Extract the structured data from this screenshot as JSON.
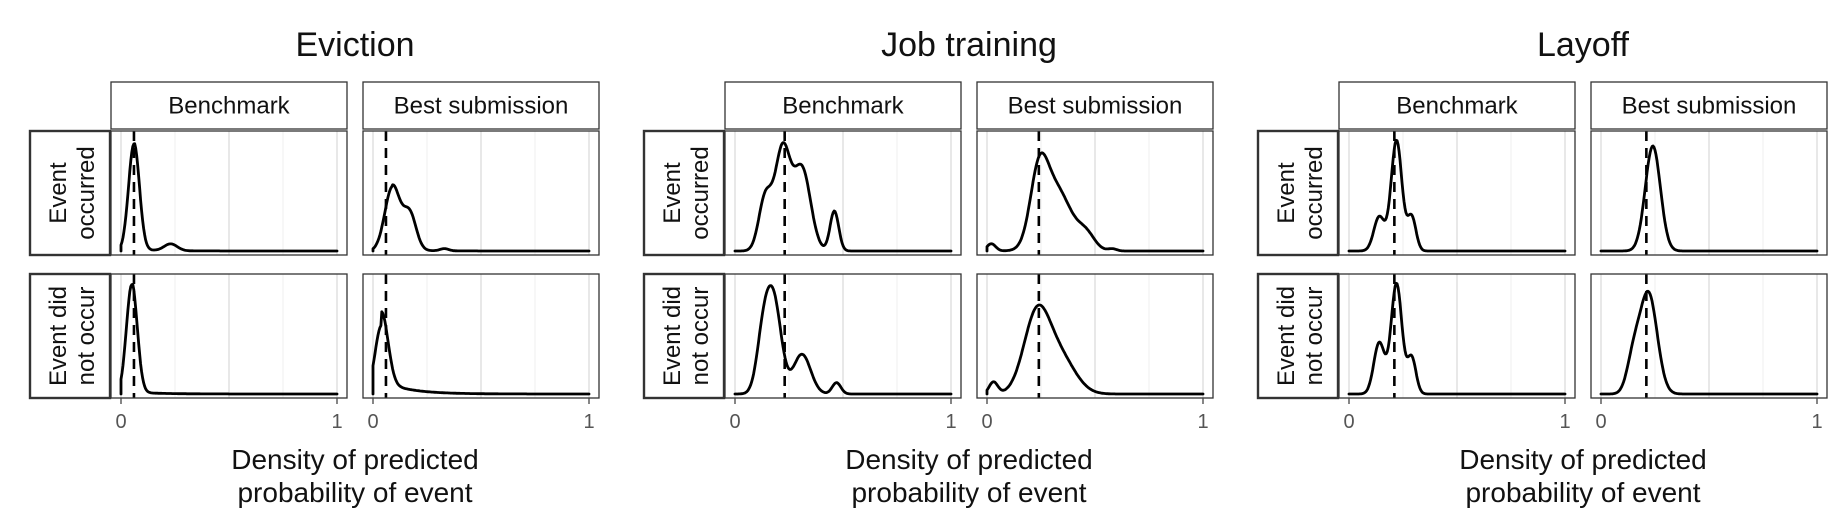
{
  "colors": {
    "line": "#000000",
    "grid": "#d9d9d9",
    "border": "#333333",
    "tick_label": "#555555"
  },
  "chart_data": [
    {
      "type": "area",
      "title": "Eviction",
      "xlabel": "Density of predicted probability of event",
      "xlabel_lines": [
        "Density of predicted",
        "probability of event"
      ],
      "xlim": [
        0,
        1
      ],
      "x_ticks": [
        0,
        1
      ],
      "x_tick_labels": [
        "0",
        "1"
      ],
      "grid": true,
      "column_facets": [
        "Benchmark",
        "Best submission"
      ],
      "row_facets": [
        "Event occurred",
        "Event did not occur"
      ],
      "row_facet_lines": [
        [
          "Event",
          "occurred"
        ],
        [
          "Event did",
          "not occur"
        ]
      ],
      "reference_line": [
        0.06,
        0.06
      ],
      "panels": [
        [
          {
            "mode": 0.06,
            "modeSd": 0.025,
            "peak": 0.94,
            "bumps": [
              [
                0.23,
                0.03,
                0.06
              ]
            ],
            "tail": 0.012
          },
          {
            "mode": 0.09,
            "modeSd": 0.035,
            "peak": 0.58,
            "bumps": [
              [
                0.17,
                0.03,
                0.33
              ],
              [
                0.33,
                0.02,
                0.02
              ]
            ],
            "tail": 0.012
          }
        ],
        [
          {
            "mode": 0.05,
            "modeSd": 0.025,
            "peak": 0.96,
            "bumps": [],
            "tail": 0.018
          },
          {
            "mode": 0.04,
            "modeSd": 0.03,
            "peak": 0.72,
            "bumps": [],
            "tail": 0.14
          }
        ]
      ]
    },
    {
      "type": "area",
      "title": "Job training",
      "xlabel": "Density of predicted probability of event",
      "xlabel_lines": [
        "Density of predicted",
        "probability of event"
      ],
      "xlim": [
        0,
        1
      ],
      "x_ticks": [
        0,
        1
      ],
      "x_tick_labels": [
        "0",
        "1"
      ],
      "grid": true,
      "column_facets": [
        "Benchmark",
        "Best submission"
      ],
      "row_facets": [
        "Event occurred",
        "Event did not occur"
      ],
      "row_facet_lines": [
        [
          "Event",
          "occurred"
        ],
        [
          "Event did",
          "not occur"
        ]
      ],
      "reference_line": [
        0.23,
        0.24
      ],
      "panels": [
        [
          {
            "mode": 0.22,
            "modeSd": 0.035,
            "peak": 0.95,
            "bumps": [
              [
                0.14,
                0.03,
                0.5
              ],
              [
                0.31,
                0.04,
                0.78
              ],
              [
                0.46,
                0.02,
                0.38
              ]
            ],
            "tail": 0
          },
          {
            "mode": 0.24,
            "modeSd": 0.04,
            "peak": 0.86,
            "bumps": [
              [
                0.32,
                0.07,
                0.85
              ],
              [
                0.46,
                0.04,
                0.2
              ],
              [
                0.02,
                0.02,
                0.1
              ],
              [
                0.58,
                0.02,
                0.03
              ]
            ],
            "tail": 0
          }
        ],
        [
          {
            "mode": 0.18,
            "modeSd": 0.035,
            "peak": 0.95,
            "bumps": [
              [
                0.13,
                0.03,
                0.55
              ],
              [
                0.31,
                0.04,
                0.42
              ],
              [
                0.47,
                0.02,
                0.12
              ]
            ],
            "tail": 0
          },
          {
            "mode": 0.23,
            "modeSd": 0.06,
            "peak": 0.78,
            "bumps": [
              [
                0.34,
                0.07,
                0.35
              ],
              [
                0.03,
                0.02,
                0.12
              ]
            ],
            "tail": 0
          }
        ]
      ]
    },
    {
      "type": "area",
      "title": "Layoff",
      "xlabel": "Density of predicted probability of event",
      "xlabel_lines": [
        "Density of predicted",
        "probability of event"
      ],
      "xlim": [
        0,
        1
      ],
      "x_ticks": [
        0,
        1
      ],
      "x_tick_labels": [
        "0",
        "1"
      ],
      "grid": true,
      "column_facets": [
        "Benchmark",
        "Best submission"
      ],
      "row_facets": [
        "Event occurred",
        "Event did not occur"
      ],
      "row_facet_lines": [
        [
          "Event",
          "occurred"
        ],
        [
          "Event did",
          "not occur"
        ]
      ],
      "reference_line": [
        0.21,
        0.21
      ],
      "panels": [
        [
          {
            "mode": 0.22,
            "modeSd": 0.025,
            "peak": 0.97,
            "bumps": [
              [
                0.14,
                0.025,
                0.3
              ],
              [
                0.29,
                0.02,
                0.3
              ]
            ],
            "tail": 0
          },
          {
            "mode": 0.24,
            "modeSd": 0.035,
            "peak": 0.92,
            "bumps": [],
            "tail": 0
          }
        ],
        [
          {
            "mode": 0.22,
            "modeSd": 0.025,
            "peak": 0.97,
            "bumps": [
              [
                0.14,
                0.025,
                0.45
              ],
              [
                0.29,
                0.02,
                0.32
              ]
            ],
            "tail": 0
          },
          {
            "mode": 0.22,
            "modeSd": 0.04,
            "peak": 0.9,
            "bumps": [
              [
                0.15,
                0.03,
                0.3
              ]
            ],
            "tail": 0
          }
        ]
      ]
    }
  ]
}
